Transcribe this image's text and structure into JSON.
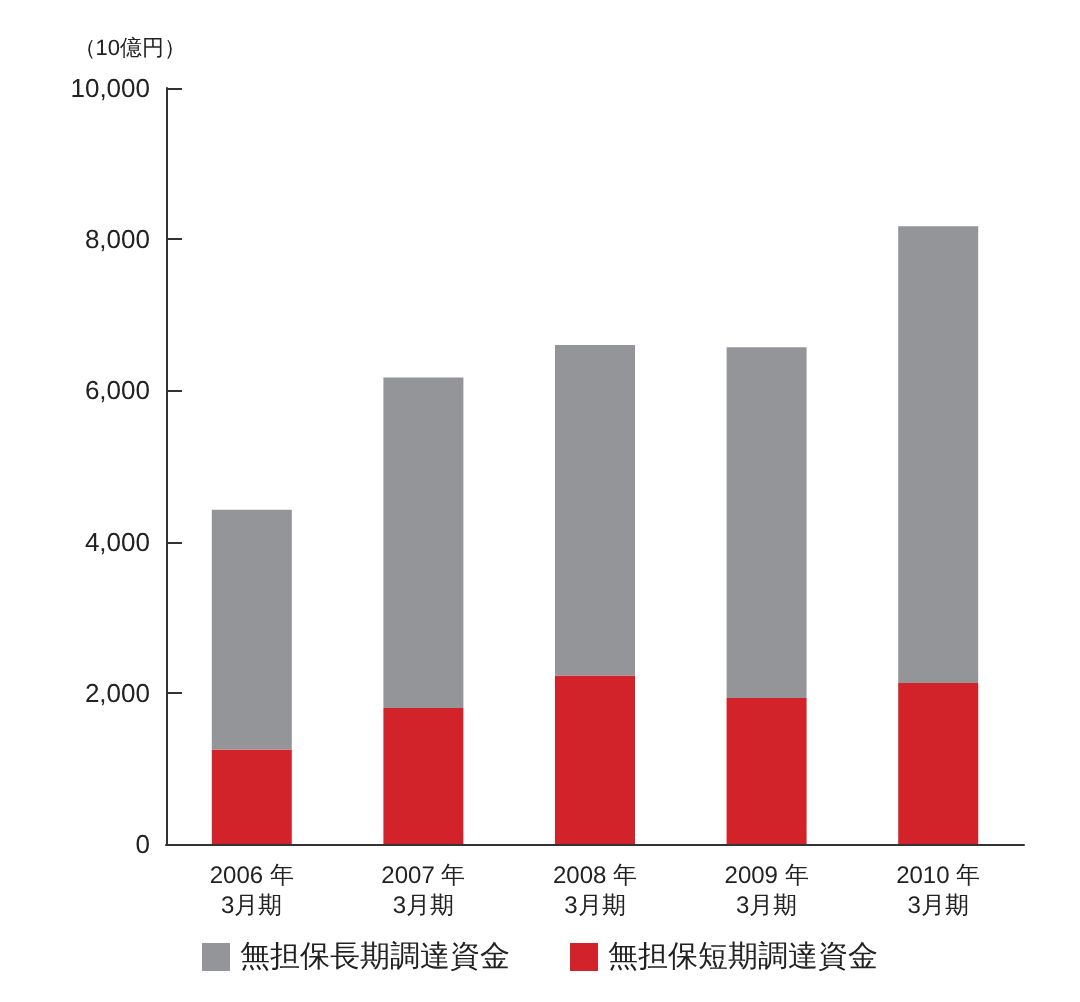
{
  "chart_data": {
    "type": "bar",
    "ylabel": "（10億円）",
    "categories": [
      "2006 年\n3月期",
      "2007 年\n3月期",
      "2008 年\n3月期",
      "2009 年\n3月期",
      "2010 年\n3月期"
    ],
    "stacked": true,
    "series": [
      {
        "name": "無担保短期調達資金",
        "color": "#d2232a",
        "values": [
          1250,
          1800,
          2230,
          1930,
          2130
        ]
      },
      {
        "name": "無担保長期調達資金",
        "color": "#939598",
        "values": [
          3170,
          4370,
          4370,
          4640,
          6040
        ]
      }
    ],
    "ylim": [
      0,
      10000
    ],
    "yticks": [
      0,
      {
        "value": 2000,
        "label": "2,000"
      },
      {
        "value": 4000,
        "label": "4,000"
      },
      {
        "value": 6000,
        "label": "6,000"
      },
      {
        "value": 8000,
        "label": "8,000"
      },
      {
        "value": 10000,
        "label": "10,000"
      }
    ],
    "grid": false,
    "legend": "bottom"
  }
}
